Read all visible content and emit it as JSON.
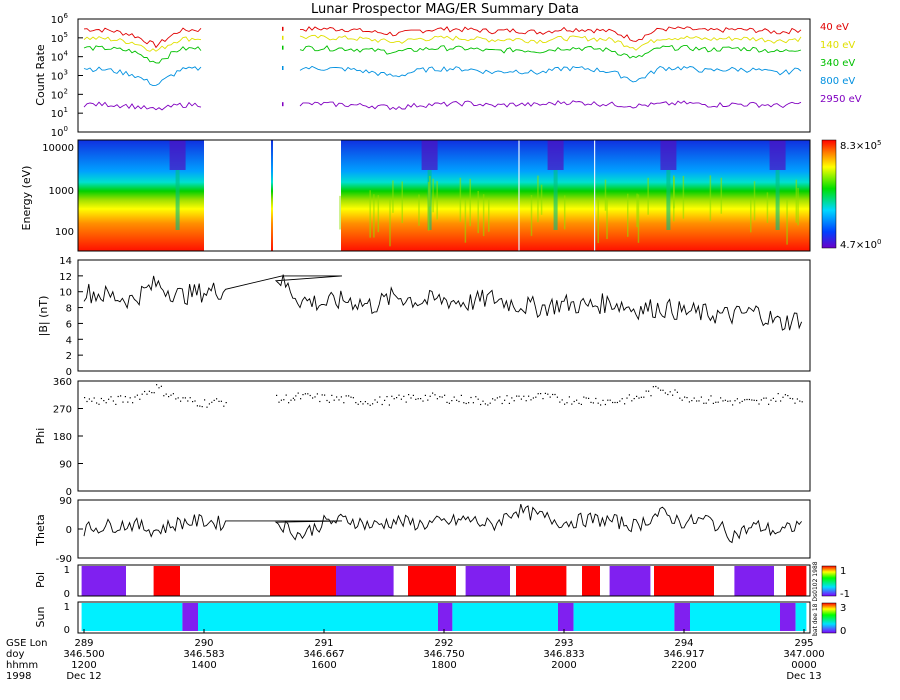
{
  "chart_data": {
    "title": "Lunar Prospector MAG/ER Summary Data",
    "type": "line",
    "credit": "bat dee 18 Ds0102 1988",
    "panels": [
      {
        "id": "count-rate",
        "type": "line",
        "ylabel": "Count Rate",
        "scale": "log",
        "ylim": [
          1,
          1000000
        ],
        "ytick_exponents": [
          "0",
          "1",
          "2",
          "3",
          "4",
          "5",
          "6"
        ],
        "series": [
          {
            "name": "40 eV",
            "color": "#e00000",
            "base": 300000,
            "values": [
              300000,
              260000,
              150000,
              40000,
              250000,
              280000,
              null,
              null,
              null,
              300000,
              310000,
              290000,
              210000,
              160000,
              250000,
              300000,
              280000,
              230000,
              250000,
              200000,
              300000,
              280000,
              220000,
              80000,
              300000,
              310000,
              240000,
              280000,
              260000,
              200000,
              300000
            ]
          },
          {
            "name": "140 eV",
            "color": "#e0e000",
            "base": 100000,
            "values": [
              100000,
              90000,
              60000,
              20000,
              90000,
              95000,
              null,
              null,
              null,
              110000,
              105000,
              100000,
              80000,
              60000,
              90000,
              100000,
              95000,
              80000,
              85000,
              70000,
              100000,
              95000,
              80000,
              30000,
              100000,
              105000,
              85000,
              95000,
              90000,
              70000,
              100000
            ]
          },
          {
            "name": "340 eV",
            "color": "#00c000",
            "base": 30000,
            "values": [
              30000,
              28000,
              20000,
              5000,
              26000,
              28000,
              null,
              null,
              null,
              30000,
              29000,
              27000,
              22000,
              18000,
              25000,
              30000,
              27000,
              20000,
              24000,
              20000,
              30000,
              28000,
              22000,
              8000,
              30000,
              31000,
              24000,
              28000,
              26000,
              18000,
              30000
            ]
          },
          {
            "name": "800 eV",
            "color": "#0090e0",
            "base": 2500,
            "values": [
              2500,
              2000,
              1200,
              300,
              2000,
              2500,
              null,
              null,
              null,
              2600,
              2400,
              2200,
              1500,
              900,
              2000,
              2400,
              2200,
              1500,
              1800,
              1400,
              2500,
              2300,
              1600,
              500,
              2500,
              2600,
              1800,
              2200,
              2000,
              1300,
              2500
            ]
          },
          {
            "name": "2950 eV",
            "color": "#8000c0",
            "base": 30,
            "values": [
              30,
              30,
              25,
              15,
              28,
              30,
              null,
              null,
              null,
              30,
              32,
              28,
              25,
              20,
              28,
              30,
              35,
              25,
              30,
              28,
              40,
              35,
              30,
              25,
              30,
              35,
              28,
              30,
              30,
              25,
              35
            ]
          }
        ]
      },
      {
        "id": "spectrogram",
        "type": "heatmap",
        "ylabel": "Energy (eV)",
        "scale": "log",
        "yticks": [
          "100",
          "1000",
          "10000"
        ],
        "colorbar": {
          "max_mantissa": "8.3×10",
          "max_exp": "5",
          "min_mantissa": "4.7×10",
          "min_exp": "0"
        }
      },
      {
        "id": "b-magnitude",
        "type": "line",
        "ylabel": "|B| (nT)",
        "ylim": [
          0,
          14
        ],
        "yticks": [
          "0",
          "2",
          "4",
          "6",
          "8",
          "10",
          "12",
          "14"
        ],
        "values": [
          10,
          9.5,
          9,
          11,
          9.5,
          10,
          10.3,
          null,
          12,
          9,
          8.5,
          9,
          8.2,
          9.5,
          8.8,
          9,
          8.6,
          9.2,
          8.4,
          8,
          8.5,
          8.2,
          8.7,
          7.8,
          8,
          7.5,
          7.2,
          7,
          7.5,
          6,
          6.8
        ]
      },
      {
        "id": "phi",
        "type": "scatter",
        "ylabel": "Phi",
        "ylim": [
          0,
          360
        ],
        "yticks": [
          "0",
          "90",
          "180",
          "270",
          "360"
        ],
        "values": [
          300,
          295,
          305,
          340,
          300,
          290,
          295,
          null,
          300,
          310,
          305,
          300,
          295,
          300,
          310,
          305,
          300,
          295,
          305,
          310,
          300,
          300,
          295,
          305,
          340,
          310,
          300,
          295,
          290,
          310,
          300
        ]
      },
      {
        "id": "theta",
        "type": "line",
        "ylabel": "Theta",
        "ylim": [
          -90,
          90
        ],
        "yticks": [
          "-90",
          "0",
          "90"
        ],
        "values": [
          0,
          10,
          15,
          -5,
          20,
          25,
          15,
          null,
          25,
          -20,
          20,
          30,
          10,
          25,
          15,
          20,
          30,
          10,
          60,
          40,
          20,
          30,
          25,
          10,
          50,
          20,
          30,
          -20,
          10,
          -10,
          20
        ]
      },
      {
        "id": "polarity",
        "type": "bar",
        "ylabel": "Pol",
        "yticks": [
          "0",
          "1"
        ],
        "colorbar_labels": [
          "1",
          "-1"
        ],
        "segments": [
          {
            "start": 288.98,
            "end": 289.35,
            "value": -1
          },
          {
            "start": 289.58,
            "end": 289.8,
            "value": 1
          },
          {
            "start": 290.55,
            "end": 291.1,
            "value": 1
          },
          {
            "start": 291.1,
            "end": 291.58,
            "value": -1
          },
          {
            "start": 291.7,
            "end": 292.1,
            "value": 1
          },
          {
            "start": 292.18,
            "end": 292.55,
            "value": -1
          },
          {
            "start": 292.6,
            "end": 293.02,
            "value": 1
          },
          {
            "start": 293.15,
            "end": 293.3,
            "value": 1
          },
          {
            "start": 293.38,
            "end": 293.72,
            "value": -1
          },
          {
            "start": 293.75,
            "end": 294.25,
            "value": 1
          },
          {
            "start": 294.42,
            "end": 294.75,
            "value": -1
          },
          {
            "start": 294.85,
            "end": 295.02,
            "value": 1
          }
        ]
      },
      {
        "id": "sun",
        "type": "bar",
        "ylabel": "Sun",
        "yticks": [
          "0",
          "1"
        ],
        "colorbar_labels": [
          "3",
          "0"
        ],
        "segments": [
          {
            "start": 288.98,
            "end": 289.82,
            "value": 1
          },
          {
            "start": 289.82,
            "end": 289.95,
            "value": 0
          },
          {
            "start": 289.95,
            "end": 291.95,
            "value": 1
          },
          {
            "start": 291.95,
            "end": 292.07,
            "value": 0
          },
          {
            "start": 292.07,
            "end": 292.95,
            "value": 1
          },
          {
            "start": 292.95,
            "end": 293.08,
            "value": 0
          },
          {
            "start": 293.08,
            "end": 293.92,
            "value": 1
          },
          {
            "start": 293.92,
            "end": 294.05,
            "value": 0
          },
          {
            "start": 294.05,
            "end": 294.8,
            "value": 1
          },
          {
            "start": 294.8,
            "end": 294.93,
            "value": 0
          },
          {
            "start": 294.93,
            "end": 295.02,
            "value": 1
          }
        ]
      }
    ],
    "x_axis": {
      "row_labels": [
        "GSE Lon",
        "doy",
        "hhmm",
        "1998"
      ],
      "ticks": [
        {
          "lon": "289",
          "doy": "346.500",
          "hhmm": "1200",
          "date": "Dec 12"
        },
        {
          "lon": "290",
          "doy": "346.583",
          "hhmm": "1400",
          "date": ""
        },
        {
          "lon": "291",
          "doy": "346.667",
          "hhmm": "1600",
          "date": ""
        },
        {
          "lon": "292",
          "doy": "346.750",
          "hhmm": "1800",
          "date": ""
        },
        {
          "lon": "293",
          "doy": "346.833",
          "hhmm": "2000",
          "date": ""
        },
        {
          "lon": "294",
          "doy": "346.917",
          "hhmm": "2200",
          "date": ""
        },
        {
          "lon": "295",
          "doy": "347.000",
          "hhmm": "0000",
          "date": "Dec 13"
        }
      ],
      "xlim": [
        288.95,
        295.05
      ],
      "data_gap": [
        289.95,
        291.1
      ]
    }
  }
}
